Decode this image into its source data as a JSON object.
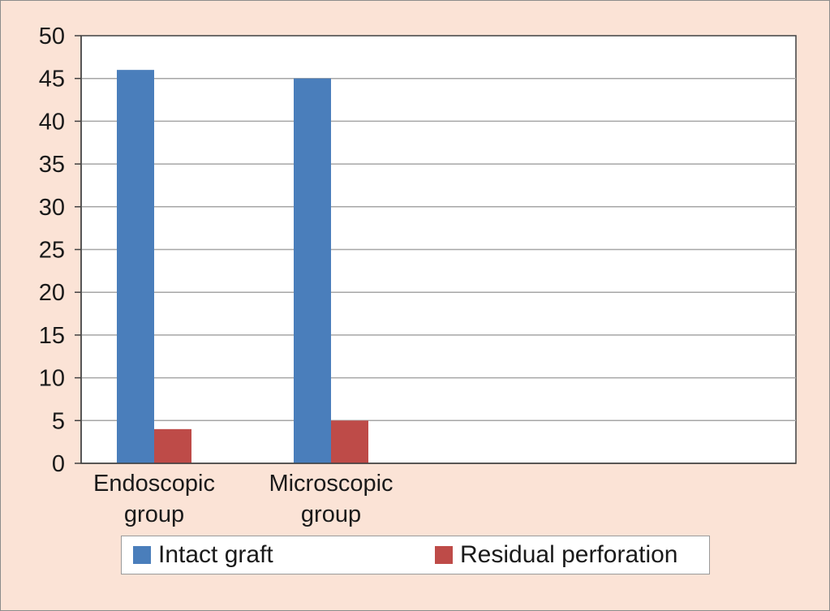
{
  "chart_data": {
    "type": "bar",
    "categories": [
      [
        "Endoscopic",
        "group"
      ],
      [
        "Microscopic",
        "group"
      ]
    ],
    "series": [
      {
        "name": "Intact graft",
        "values": [
          46,
          45
        ],
        "color": "#4a7ebb"
      },
      {
        "name": "Residual perforation",
        "values": [
          4,
          5
        ],
        "color": "#be4b48"
      }
    ],
    "ylim": [
      0,
      50
    ],
    "yticks": [
      0,
      5,
      10,
      15,
      20,
      25,
      30,
      35,
      40,
      45,
      50
    ],
    "grid": true,
    "legend_position": "bottom"
  }
}
